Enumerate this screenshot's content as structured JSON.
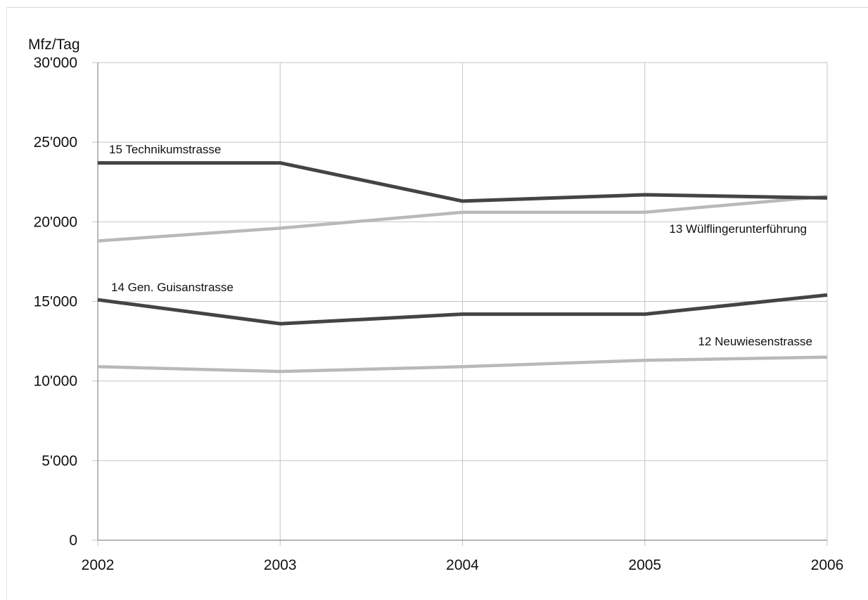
{
  "chart_data": {
    "type": "line",
    "title": "",
    "xlabel": "",
    "ylabel": "Mfz/Tag",
    "x": [
      "2002",
      "2003",
      "2004",
      "2005",
      "2006"
    ],
    "ylim": [
      0,
      30000
    ],
    "y_ticks": [
      "0",
      "5'000",
      "10'000",
      "15'000",
      "20'000",
      "25'000",
      "30'000"
    ],
    "grid": true,
    "legend": "inline labels",
    "series": [
      {
        "name": "15  Technikumstrasse",
        "values": [
          23700,
          23700,
          21300,
          21700,
          21500
        ],
        "color": "#444444"
      },
      {
        "name": "13  Wülflingerunterführung",
        "values": [
          18800,
          19600,
          20600,
          20600,
          21600
        ],
        "color": "#b9b9b9"
      },
      {
        "name": "14  Gen. Guisanstrasse",
        "values": [
          15100,
          13600,
          14200,
          14200,
          15400
        ],
        "color": "#444444"
      },
      {
        "name": "12  Neuwiesenstrasse",
        "values": [
          10900,
          10600,
          10900,
          11300,
          11500
        ],
        "color": "#b9b9b9"
      }
    ]
  }
}
